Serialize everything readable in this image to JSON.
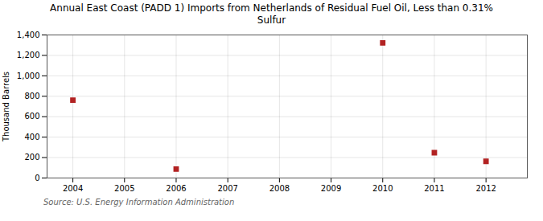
{
  "chart_data": {
    "type": "scatter",
    "title": "Annual East Coast (PADD 1) Imports from Netherlands of Residual Fuel Oil, Less than 0.31%\nSulfur",
    "ylabel": "Thousand Barrels",
    "source": "Source: U.S. Energy Information Administration",
    "x": [
      2004,
      2006,
      2010,
      2011,
      2012
    ],
    "values": [
      762,
      87,
      1322,
      248,
      163
    ],
    "color": "#b22222",
    "marker": "square",
    "xlim": [
      2003.5,
      2012.8
    ],
    "xticks": [
      2004,
      2005,
      2006,
      2007,
      2008,
      2009,
      2010,
      2011,
      2012
    ],
    "ylim": [
      0,
      1400
    ],
    "yticks": [
      0,
      200,
      400,
      600,
      800,
      {
        "value": 1000,
        "label": "1,000"
      },
      {
        "value": 1200,
        "label": "1,200"
      },
      {
        "value": 1400,
        "label": "1,400"
      }
    ],
    "grid": true
  }
}
